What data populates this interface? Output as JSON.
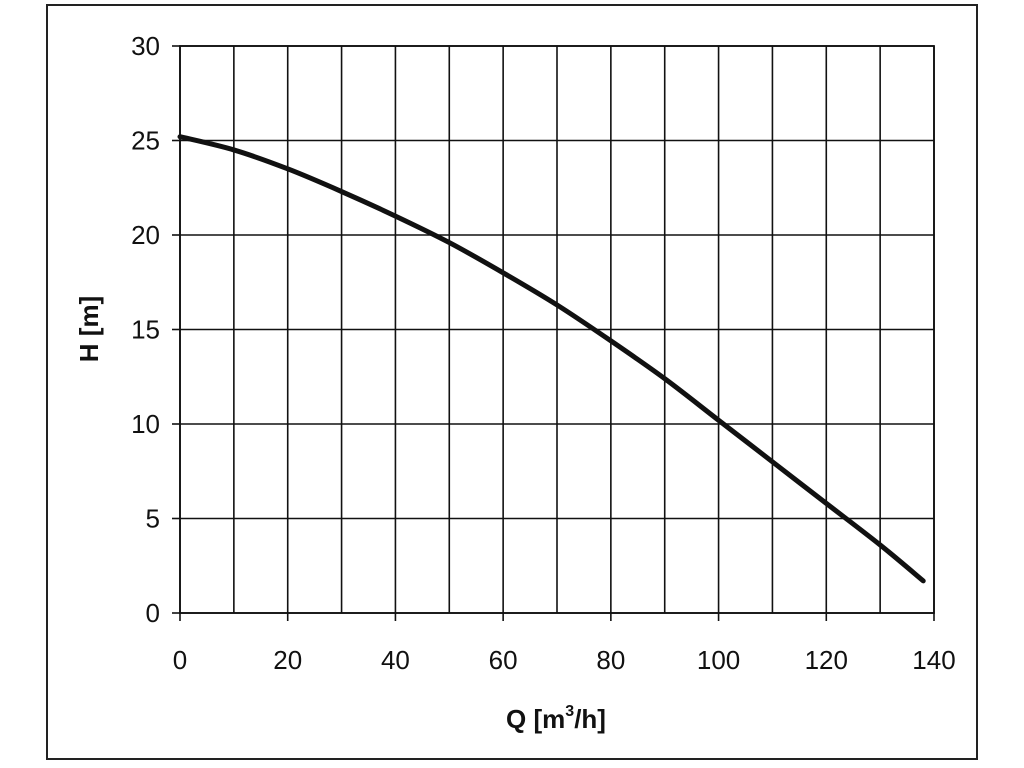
{
  "chart_data": {
    "type": "line",
    "title": "",
    "xlabel": "Q [m",
    "xlabel_sup": "3",
    "xlabel_suffix": "/h]",
    "ylabel": "H [m]",
    "xlim": [
      0,
      140
    ],
    "ylim": [
      0,
      30
    ],
    "xticks": [
      0,
      20,
      40,
      60,
      80,
      100,
      120,
      140
    ],
    "yticks": [
      0,
      5,
      10,
      15,
      20,
      25,
      30
    ],
    "grid": true,
    "grid_step_x": 10,
    "grid_step_y": 5,
    "line_color": "#111111",
    "series": [
      {
        "x": [
          0,
          10,
          20,
          30,
          40,
          50,
          60,
          70,
          80,
          90,
          100,
          110,
          120,
          130,
          138
        ],
        "y": [
          25.2,
          24.5,
          23.5,
          22.3,
          21.0,
          19.6,
          18.0,
          16.3,
          14.4,
          12.4,
          10.2,
          8.0,
          5.8,
          3.6,
          1.7
        ]
      }
    ]
  }
}
